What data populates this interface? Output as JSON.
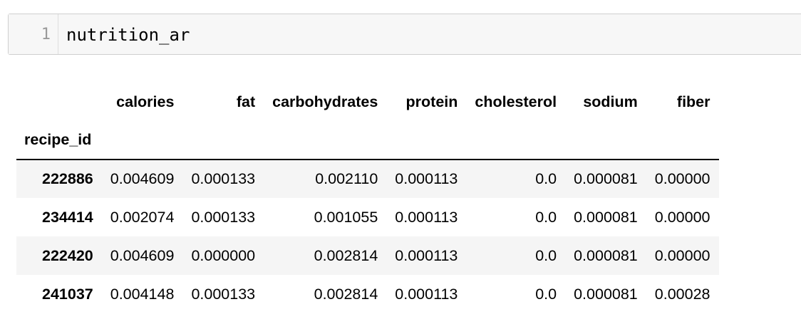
{
  "cell": {
    "line_number": "1",
    "code": "nutrition_ar"
  },
  "table": {
    "index_name": "recipe_id",
    "columns": [
      "calories",
      "fat",
      "carbohydrates",
      "protein",
      "cholesterol",
      "sodium",
      "fiber"
    ],
    "rows": [
      {
        "index": "222886",
        "values": [
          "0.004609",
          "0.000133",
          "0.002110",
          "0.000113",
          "0.0",
          "0.000081",
          "0.00000"
        ]
      },
      {
        "index": "234414",
        "values": [
          "0.002074",
          "0.000133",
          "0.001055",
          "0.000113",
          "0.0",
          "0.000081",
          "0.00000"
        ]
      },
      {
        "index": "222420",
        "values": [
          "0.004609",
          "0.000000",
          "0.002814",
          "0.000113",
          "0.0",
          "0.000081",
          "0.00000"
        ]
      },
      {
        "index": "241037",
        "values": [
          "0.004148",
          "0.000133",
          "0.002814",
          "0.000113",
          "0.0",
          "0.000081",
          "0.00028"
        ]
      }
    ]
  }
}
